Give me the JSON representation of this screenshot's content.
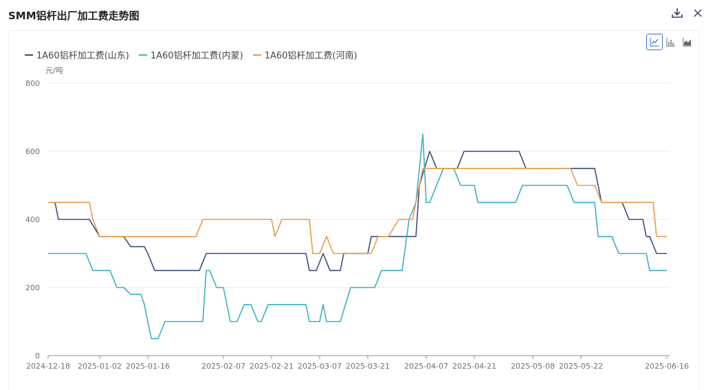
{
  "header": {
    "title": "SMM铝杆出厂加工费走势图",
    "download_icon": "download-icon",
    "close_icon": "close-icon"
  },
  "toolbar": {
    "chart_types": [
      {
        "icon": "line-chart-icon",
        "active": true
      },
      {
        "icon": "bar-chart-icon",
        "active": false
      },
      {
        "icon": "area-chart-icon",
        "active": false
      }
    ]
  },
  "colors": {
    "shandong": "#3a4a7c",
    "neimeng": "#37b0c2",
    "henan": "#e8994a",
    "grid": "#e8ebef",
    "axis_text": "#6e7079"
  },
  "chart_data": {
    "type": "line",
    "ylabel": "元/吨",
    "ylim": [
      0,
      800
    ],
    "yticks": [
      0,
      200,
      400,
      600,
      800
    ],
    "x_start": "2024-12-18",
    "x_end": "2025-06-16",
    "xticks": [
      "2024-12-18",
      "2025-01-02",
      "2025-01-16",
      "2025-02-07",
      "2025-02-21",
      "2025-03-07",
      "2025-03-21",
      "2025-04-07",
      "2025-04-21",
      "2025-05-08",
      "2025-05-22",
      "2025-06-16"
    ],
    "series": [
      {
        "name": "1A60铝杆加工费(山东)",
        "color": "#3a4a7c",
        "points": [
          [
            "2024-12-18",
            450
          ],
          [
            "2024-12-20",
            450
          ],
          [
            "2024-12-21",
            400
          ],
          [
            "2024-12-26",
            400
          ],
          [
            "2024-12-30",
            400
          ],
          [
            "2025-01-02",
            350
          ],
          [
            "2025-01-09",
            350
          ],
          [
            "2025-01-11",
            320
          ],
          [
            "2025-01-15",
            320
          ],
          [
            "2025-01-16",
            300
          ],
          [
            "2025-01-18",
            250
          ],
          [
            "2025-01-31",
            250
          ],
          [
            "2025-02-02",
            300
          ],
          [
            "2025-02-28",
            300
          ],
          [
            "2025-03-03",
            300
          ],
          [
            "2025-03-04",
            250
          ],
          [
            "2025-03-06",
            250
          ],
          [
            "2025-03-08",
            300
          ],
          [
            "2025-03-10",
            250
          ],
          [
            "2025-03-13",
            250
          ],
          [
            "2025-03-14",
            300
          ],
          [
            "2025-03-21",
            300
          ],
          [
            "2025-03-22",
            350
          ],
          [
            "2025-04-04",
            350
          ],
          [
            "2025-04-05",
            500
          ],
          [
            "2025-04-08",
            600
          ],
          [
            "2025-04-10",
            550
          ],
          [
            "2025-04-16",
            550
          ],
          [
            "2025-04-18",
            600
          ],
          [
            "2025-05-04",
            600
          ],
          [
            "2025-05-06",
            550
          ],
          [
            "2025-05-26",
            550
          ],
          [
            "2025-05-28",
            450
          ],
          [
            "2025-06-03",
            450
          ],
          [
            "2025-06-05",
            400
          ],
          [
            "2025-06-09",
            400
          ],
          [
            "2025-06-10",
            350
          ],
          [
            "2025-06-11",
            350
          ],
          [
            "2025-06-13",
            300
          ],
          [
            "2025-06-16",
            300
          ]
        ]
      },
      {
        "name": "1A60铝杆加工费(内蒙)",
        "color": "#37b0c2",
        "points": [
          [
            "2024-12-18",
            300
          ],
          [
            "2024-12-29",
            300
          ],
          [
            "2024-12-31",
            250
          ],
          [
            "2025-01-05",
            250
          ],
          [
            "2025-01-07",
            200
          ],
          [
            "2025-01-09",
            200
          ],
          [
            "2025-01-11",
            180
          ],
          [
            "2025-01-14",
            180
          ],
          [
            "2025-01-15",
            150
          ],
          [
            "2025-01-17",
            50
          ],
          [
            "2025-01-19",
            50
          ],
          [
            "2025-01-21",
            100
          ],
          [
            "2025-01-25",
            100
          ],
          [
            "2025-01-26",
            100
          ],
          [
            "2025-02-01",
            100
          ],
          [
            "2025-02-02",
            250
          ],
          [
            "2025-02-03",
            250
          ],
          [
            "2025-02-05",
            200
          ],
          [
            "2025-02-07",
            200
          ],
          [
            "2025-02-09",
            100
          ],
          [
            "2025-02-11",
            100
          ],
          [
            "2025-02-13",
            150
          ],
          [
            "2025-02-15",
            150
          ],
          [
            "2025-02-17",
            100
          ],
          [
            "2025-02-18",
            100
          ],
          [
            "2025-02-20",
            150
          ],
          [
            "2025-03-03",
            150
          ],
          [
            "2025-03-04",
            100
          ],
          [
            "2025-03-07",
            100
          ],
          [
            "2025-03-08",
            150
          ],
          [
            "2025-03-09",
            100
          ],
          [
            "2025-03-13",
            100
          ],
          [
            "2025-03-16",
            200
          ],
          [
            "2025-03-23",
            200
          ],
          [
            "2025-03-25",
            250
          ],
          [
            "2025-03-31",
            250
          ],
          [
            "2025-04-02",
            400
          ],
          [
            "2025-04-04",
            450
          ],
          [
            "2025-04-06",
            650
          ],
          [
            "2025-04-07",
            450
          ],
          [
            "2025-04-08",
            450
          ],
          [
            "2025-04-12",
            550
          ],
          [
            "2025-04-15",
            550
          ],
          [
            "2025-04-17",
            500
          ],
          [
            "2025-04-21",
            500
          ],
          [
            "2025-04-22",
            450
          ],
          [
            "2025-05-03",
            450
          ],
          [
            "2025-05-05",
            500
          ],
          [
            "2025-05-18",
            500
          ],
          [
            "2025-05-20",
            450
          ],
          [
            "2025-05-26",
            450
          ],
          [
            "2025-05-27",
            350
          ],
          [
            "2025-05-31",
            350
          ],
          [
            "2025-06-02",
            300
          ],
          [
            "2025-06-10",
            300
          ],
          [
            "2025-06-11",
            250
          ],
          [
            "2025-06-16",
            250
          ]
        ]
      },
      {
        "name": "1A60铝杆加工费(河南)",
        "color": "#e8994a",
        "points": [
          [
            "2024-12-18",
            450
          ],
          [
            "2024-12-30",
            450
          ],
          [
            "2024-12-31",
            400
          ],
          [
            "2025-01-02",
            350
          ],
          [
            "2025-01-30",
            350
          ],
          [
            "2025-02-01",
            400
          ],
          [
            "2025-02-21",
            400
          ],
          [
            "2025-02-22",
            350
          ],
          [
            "2025-02-24",
            400
          ],
          [
            "2025-02-28",
            400
          ],
          [
            "2025-03-04",
            400
          ],
          [
            "2025-03-05",
            300
          ],
          [
            "2025-03-07",
            300
          ],
          [
            "2025-03-09",
            350
          ],
          [
            "2025-03-11",
            300
          ],
          [
            "2025-03-22",
            300
          ],
          [
            "2025-03-24",
            350
          ],
          [
            "2025-03-27",
            350
          ],
          [
            "2025-03-30",
            400
          ],
          [
            "2025-04-03",
            400
          ],
          [
            "2025-04-05",
            500
          ],
          [
            "2025-04-06",
            550
          ],
          [
            "2025-05-19",
            550
          ],
          [
            "2025-05-21",
            500
          ],
          [
            "2025-05-26",
            500
          ],
          [
            "2025-05-28",
            450
          ],
          [
            "2025-06-12",
            450
          ],
          [
            "2025-06-13",
            350
          ],
          [
            "2025-06-16",
            350
          ]
        ]
      }
    ],
    "grid": true,
    "legend": "top-left"
  }
}
